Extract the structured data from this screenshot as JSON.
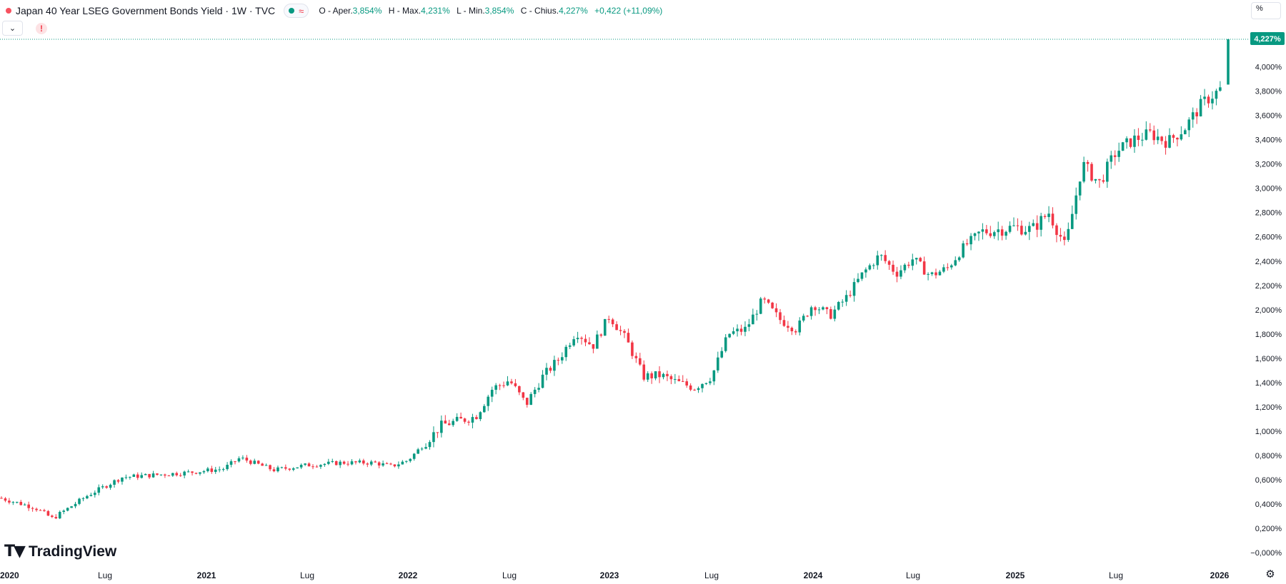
{
  "legend": {
    "title": "Japan 40 Year LSEG Government Bonds Yield · 1W · TVC",
    "open_label": "O - Aper.",
    "open_value": "3,854%",
    "high_label": "H - Max.",
    "high_value": "4,231%",
    "low_label": "L - Min.",
    "low_value": "3,854%",
    "close_label": "C - Chius.",
    "close_value": "4,227%",
    "change": "+0,422 (+11,09%)"
  },
  "toolbar": {
    "percent_label": "%",
    "collapse_icon": "chevron-down-icon",
    "warning_icon": "warning-icon"
  },
  "branding": {
    "logo_text": "TradingView"
  },
  "price_tag": "4,227%",
  "colors": {
    "up": "#089981",
    "down": "#f23645",
    "grid_text": "#131722"
  },
  "chart_data": {
    "type": "candlestick",
    "title": "Japan 40 Year LSEG Government Bonds Yield",
    "interval": "1W",
    "y_unit": "%",
    "ylim": [
      0.0,
      4.3
    ],
    "y_ticks": [
      "4,000%",
      "3,800%",
      "3,600%",
      "3,400%",
      "3,200%",
      "3,000%",
      "2,800%",
      "2,600%",
      "2,400%",
      "2,200%",
      "2,000%",
      "1,800%",
      "1,600%",
      "1,400%",
      "1,200%",
      "1,000%",
      "0,800%",
      "0,600%",
      "0,400%",
      "0,200%",
      "−0,000%"
    ],
    "y_tick_values": [
      4.0,
      3.8,
      3.6,
      3.4,
      3.2,
      3.0,
      2.8,
      2.6,
      2.4,
      2.2,
      2.0,
      1.8,
      1.6,
      1.4,
      1.2,
      1.0,
      0.8,
      0.6,
      0.4,
      0.2,
      0.0
    ],
    "x_ticks": [
      "2020",
      "Lug",
      "2021",
      "Lug",
      "2022",
      "Lug",
      "2023",
      "Lug",
      "2024",
      "Lug",
      "2025",
      "Lug",
      "2026"
    ],
    "x_tick_dates": [
      "2020-01",
      "2020-07",
      "2021-01",
      "2021-07",
      "2022-01",
      "2022-07",
      "2023-01",
      "2023-07",
      "2024-01",
      "2024-07",
      "2025-01",
      "2025-07",
      "2026-01"
    ],
    "series_yield": [
      [
        "2020-01",
        0.45
      ],
      [
        "2020-03",
        0.37
      ],
      [
        "2020-04",
        0.28
      ],
      [
        "2020-06",
        0.47
      ],
      [
        "2020-08",
        0.62
      ],
      [
        "2020-10",
        0.64
      ],
      [
        "2020-12",
        0.66
      ],
      [
        "2021-02",
        0.69
      ],
      [
        "2021-03",
        0.78
      ],
      [
        "2021-05",
        0.68
      ],
      [
        "2021-07",
        0.72
      ],
      [
        "2021-09",
        0.74
      ],
      [
        "2021-11",
        0.74
      ],
      [
        "2021-12",
        0.71
      ],
      [
        "2022-01",
        0.76
      ],
      [
        "2022-02",
        0.9
      ],
      [
        "2022-03",
        1.05
      ],
      [
        "2022-05",
        1.12
      ],
      [
        "2022-06",
        1.35
      ],
      [
        "2022-07",
        1.42
      ],
      [
        "2022-08",
        1.22
      ],
      [
        "2022-09",
        1.45
      ],
      [
        "2022-10",
        1.6
      ],
      [
        "2022-11",
        1.82
      ],
      [
        "2022-12",
        1.7
      ],
      [
        "2023-01",
        1.95
      ],
      [
        "2023-02",
        1.75
      ],
      [
        "2023-03",
        1.45
      ],
      [
        "2023-04",
        1.46
      ],
      [
        "2023-05",
        1.4
      ],
      [
        "2023-06",
        1.36
      ],
      [
        "2023-07",
        1.45
      ],
      [
        "2023-08",
        1.8
      ],
      [
        "2023-09",
        1.84
      ],
      [
        "2023-10",
        2.08
      ],
      [
        "2023-11",
        1.92
      ],
      [
        "2023-12",
        1.84
      ],
      [
        "2024-01",
        2.05
      ],
      [
        "2024-02",
        1.95
      ],
      [
        "2024-03",
        2.1
      ],
      [
        "2024-04",
        2.3
      ],
      [
        "2024-05",
        2.45
      ],
      [
        "2024-06",
        2.3
      ],
      [
        "2024-07",
        2.42
      ],
      [
        "2024-08",
        2.28
      ],
      [
        "2024-09",
        2.34
      ],
      [
        "2024-10",
        2.52
      ],
      [
        "2024-11",
        2.64
      ],
      [
        "2024-12",
        2.66
      ],
      [
        "2025-01",
        2.68
      ],
      [
        "2025-02",
        2.66
      ],
      [
        "2025-03",
        2.8
      ],
      [
        "2025-04",
        2.52
      ],
      [
        "2025-05",
        3.2
      ],
      [
        "2025-06",
        3.04
      ],
      [
        "2025-07",
        3.3
      ],
      [
        "2025-08",
        3.4
      ],
      [
        "2025-09",
        3.45
      ],
      [
        "2025-10",
        3.38
      ],
      [
        "2025-11",
        3.5
      ],
      [
        "2025-12",
        3.7
      ],
      [
        "2026-01",
        3.85
      ],
      [
        "2026-01",
        4.227
      ]
    ]
  }
}
